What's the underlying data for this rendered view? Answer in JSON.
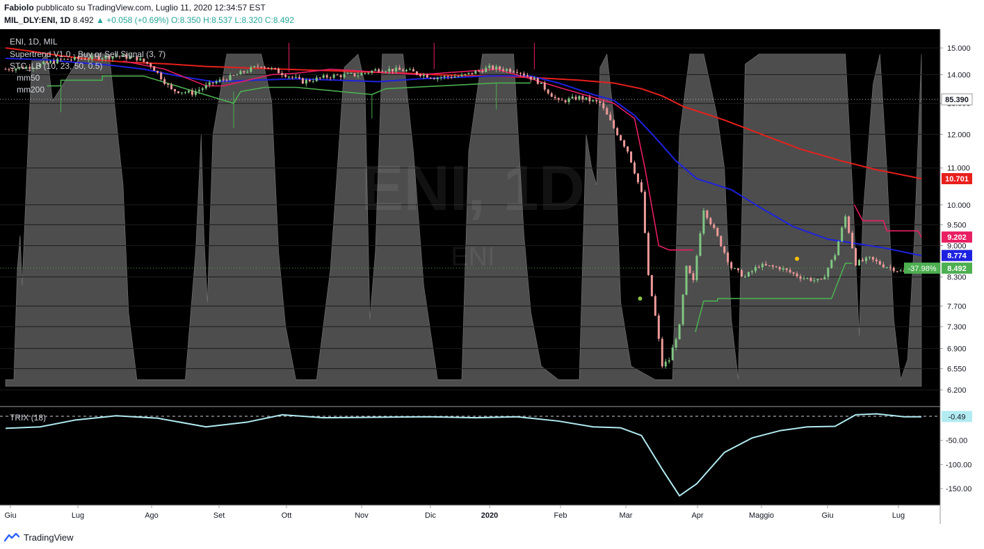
{
  "header": {
    "author": "Fabiolo",
    "published": "pubblicato su TradingView.com, Luglio 11, 2020 12:34:57 EST",
    "symbol": "MIL_DLY:ENI, 1D",
    "last": "8.492",
    "change": "▲ +0.058 (+0.69%)",
    "ohlc_o": "O:8.350",
    "ohlc_h": "H:8.537",
    "ohlc_l": "L:8.320",
    "ohlc_c": "C:8.492"
  },
  "legend": {
    "title": "ENI, 1D, MIL",
    "supertrend": "Supertrend V1.0 - Buy or Sell Signal (3, 7)",
    "stc": "STC_LB (10, 23, 50, 0.5)",
    "mm50": "mm50",
    "mm200": "mm200",
    "trix": "TRIX (18)"
  },
  "watermark": {
    "main": "ENI, 1D",
    "sub": "ENI"
  },
  "footer": {
    "brand": "TradingView"
  },
  "colors": {
    "background": "#000000",
    "up_candle": "#81c784",
    "down_candle": "#ef9a9a",
    "mm200": "#e8201c",
    "mm50": "#1e22e0",
    "supertrend_up": "#4caf50",
    "supertrend_down": "#e91e63",
    "stc_fill": "#5a5a5a",
    "trix": "#b2ebf2"
  },
  "chart_data": [
    {
      "type": "line",
      "title": "MIL_DLY:ENI, 1D",
      "x_tick_labels": [
        "Giu",
        "Lug",
        "Ago",
        "Set",
        "Ott",
        "Nov",
        "Dic",
        "2020",
        "Feb",
        "Mar",
        "Apr",
        "Maggio",
        "Giu",
        "Lug"
      ],
      "y_tick_labels": [
        "15.000",
        "14.000",
        "13.000",
        "12.000",
        "11.000",
        "10.000",
        "9.500",
        "9.000",
        "8.300",
        "7.700",
        "7.300",
        "6.900",
        "6.550",
        "6.200"
      ],
      "ylim": [
        6.2,
        15.0
      ],
      "log_scale": true,
      "price_labels": [
        {
          "name": "mm200",
          "value": "10.701",
          "color": "#e8201c"
        },
        {
          "name": "supertrend",
          "value": "9.202",
          "color": "#e91e63"
        },
        {
          "name": "mm50",
          "value": "8.774",
          "color": "#1e22e0"
        },
        {
          "name": "last",
          "value": "8.492",
          "color": "#4caf50",
          "extra": "-37.98%"
        },
        {
          "name": "stc",
          "value": "85.390",
          "color": "#ffffff"
        }
      ],
      "series": [
        {
          "name": "mm200",
          "points": [
            [
              0,
              15.0
            ],
            [
              30,
              14.9
            ],
            [
              80,
              14.7
            ],
            [
              130,
              14.55
            ],
            [
              180,
              14.45
            ],
            [
              230,
              14.4
            ],
            [
              290,
              14.3
            ],
            [
              345,
              14.25
            ],
            [
              400,
              14.2
            ],
            [
              460,
              14.15
            ],
            [
              520,
              14.1
            ],
            [
              580,
              14.05
            ],
            [
              620,
              14.0
            ],
            [
              700,
              13.95
            ],
            [
              760,
              13.9
            ],
            [
              830,
              13.8
            ],
            [
              880,
              13.7
            ],
            [
              920,
              13.5
            ],
            [
              950,
              13.25
            ],
            [
              980,
              12.9
            ],
            [
              1040,
              12.45
            ],
            [
              1100,
              11.95
            ],
            [
              1150,
              11.55
            ],
            [
              1210,
              11.2
            ],
            [
              1260,
              10.95
            ],
            [
              1325,
              10.7
            ]
          ]
        },
        {
          "name": "mm50",
          "points": [
            [
              0,
              14.6
            ],
            [
              60,
              14.55
            ],
            [
              100,
              14.45
            ],
            [
              150,
              14.35
            ],
            [
              200,
              14.2
            ],
            [
              250,
              13.95
            ],
            [
              300,
              13.75
            ],
            [
              360,
              13.8
            ],
            [
              420,
              13.85
            ],
            [
              480,
              13.8
            ],
            [
              540,
              13.75
            ],
            [
              600,
              13.85
            ],
            [
              650,
              13.9
            ],
            [
              700,
              13.95
            ],
            [
              760,
              13.95
            ],
            [
              800,
              13.7
            ],
            [
              850,
              13.3
            ],
            [
              880,
              13.1
            ],
            [
              910,
              12.6
            ],
            [
              940,
              11.9
            ],
            [
              970,
              11.2
            ],
            [
              1000,
              10.7
            ],
            [
              1050,
              10.4
            ],
            [
              1090,
              9.95
            ],
            [
              1140,
              9.45
            ],
            [
              1190,
              9.15
            ],
            [
              1230,
              9.05
            ],
            [
              1270,
              8.95
            ],
            [
              1325,
              8.77
            ]
          ]
        },
        {
          "name": "supertrend_up",
          "points": [
            [
              60,
              13.6
            ],
            [
              80,
              13.6
            ],
            [
              80,
              13.8
            ],
            [
              140,
              13.8
            ],
            [
              140,
              13.95
            ],
            [
              200,
              13.95
            ],
            [
              330,
              13.0
            ],
            [
              340,
              13.4
            ],
            [
              375,
              13.55
            ],
            [
              420,
              13.55
            ],
            [
              530,
              13.3
            ],
            [
              550,
              13.5
            ],
            [
              710,
              13.7
            ],
            [
              760,
              13.7
            ]
          ]
        },
        {
          "name": "supertrend_up_2",
          "points": [
            [
              998,
              7.2
            ],
            [
              1010,
              7.8
            ],
            [
              1030,
              7.8
            ],
            [
              1030,
              7.85
            ],
            [
              1195,
              7.85
            ],
            [
              1215,
              8.6
            ],
            [
              1225,
              8.6
            ]
          ]
        },
        {
          "name": "supertrend_down",
          "points": [
            [
              170,
              14.5
            ],
            [
              230,
              14.2
            ],
            [
              290,
              13.6
            ],
            [
              315,
              13.6
            ],
            [
              385,
              14.0
            ],
            [
              420,
              14.05
            ],
            [
              470,
              14.2
            ],
            [
              600,
              14.0
            ],
            [
              710,
              14.2
            ],
            [
              760,
              13.85
            ],
            [
              800,
              13.55
            ],
            [
              880,
              13.0
            ],
            [
              910,
              12.5
            ],
            [
              925,
              11.0
            ],
            [
              945,
              9.0
            ],
            [
              960,
              8.9
            ],
            [
              995,
              8.9
            ]
          ]
        },
        {
          "name": "supertrend_down_2",
          "points": [
            [
              1228,
              10.0
            ],
            [
              1240,
              9.6
            ],
            [
              1270,
              9.6
            ],
            [
              1275,
              9.35
            ],
            [
              1320,
              9.35
            ],
            [
              1325,
              9.2
            ]
          ]
        },
        {
          "name": "price_close",
          "points": [
            [
              0,
              14.2
            ],
            [
              40,
              14.3
            ],
            [
              80,
              14.55
            ],
            [
              120,
              14.6
            ],
            [
              160,
              14.7
            ],
            [
              190,
              14.6
            ],
            [
              210,
              14.35
            ],
            [
              240,
              13.45
            ],
            [
              270,
              13.35
            ],
            [
              300,
              13.7
            ],
            [
              330,
              13.95
            ],
            [
              370,
              14.35
            ],
            [
              400,
              14.05
            ],
            [
              430,
              13.75
            ],
            [
              470,
              13.95
            ],
            [
              510,
              14.0
            ],
            [
              540,
              14.2
            ],
            [
              580,
              14.15
            ],
            [
              620,
              13.9
            ],
            [
              660,
              13.95
            ],
            [
              700,
              14.25
            ],
            [
              740,
              14.15
            ],
            [
              770,
              13.75
            ],
            [
              800,
              13.05
            ],
            [
              830,
              13.2
            ],
            [
              860,
              13.0
            ],
            [
              880,
              12.2
            ],
            [
              900,
              11.5
            ],
            [
              920,
              10.3
            ],
            [
              930,
              8.3
            ],
            [
              940,
              7.5
            ],
            [
              950,
              6.6
            ],
            [
              960,
              6.7
            ],
            [
              975,
              7.3
            ],
            [
              985,
              8.5
            ],
            [
              995,
              8.2
            ],
            [
              1010,
              9.9
            ],
            [
              1030,
              9.2
            ],
            [
              1050,
              8.5
            ],
            [
              1070,
              8.3
            ],
            [
              1090,
              8.55
            ],
            [
              1120,
              8.5
            ],
            [
              1150,
              8.3
            ],
            [
              1180,
              8.2
            ],
            [
              1200,
              8.8
            ],
            [
              1215,
              9.7
            ],
            [
              1230,
              8.6
            ],
            [
              1250,
              8.7
            ],
            [
              1270,
              8.55
            ],
            [
              1300,
              8.4
            ],
            [
              1325,
              8.49
            ]
          ]
        },
        {
          "name": "stc",
          "range": [
            0,
            100
          ]
        }
      ]
    },
    {
      "type": "line",
      "title": "TRIX (18)",
      "y_tick_labels": [
        "-50.00",
        "-100.00",
        "-150.00"
      ],
      "ylim": [
        -160,
        10
      ],
      "last_value": "-0.49",
      "series": [
        {
          "name": "TRIX (18)",
          "points": [
            [
              0,
              -25
            ],
            [
              50,
              -22
            ],
            [
              100,
              -8
            ],
            [
              160,
              1
            ],
            [
              220,
              -4
            ],
            [
              290,
              -22
            ],
            [
              350,
              -12
            ],
            [
              400,
              3
            ],
            [
              460,
              -3
            ],
            [
              540,
              -2
            ],
            [
              610,
              -1
            ],
            [
              680,
              -3
            ],
            [
              740,
              -1
            ],
            [
              800,
              -10
            ],
            [
              850,
              -22
            ],
            [
              890,
              -24
            ],
            [
              920,
              -40
            ],
            [
              950,
              -110
            ],
            [
              975,
              -165
            ],
            [
              1000,
              -140
            ],
            [
              1040,
              -75
            ],
            [
              1080,
              -45
            ],
            [
              1120,
              -30
            ],
            [
              1160,
              -22
            ],
            [
              1200,
              -21
            ],
            [
              1230,
              3
            ],
            [
              1260,
              5
            ],
            [
              1300,
              -1
            ],
            [
              1325,
              -1
            ]
          ]
        }
      ]
    }
  ]
}
